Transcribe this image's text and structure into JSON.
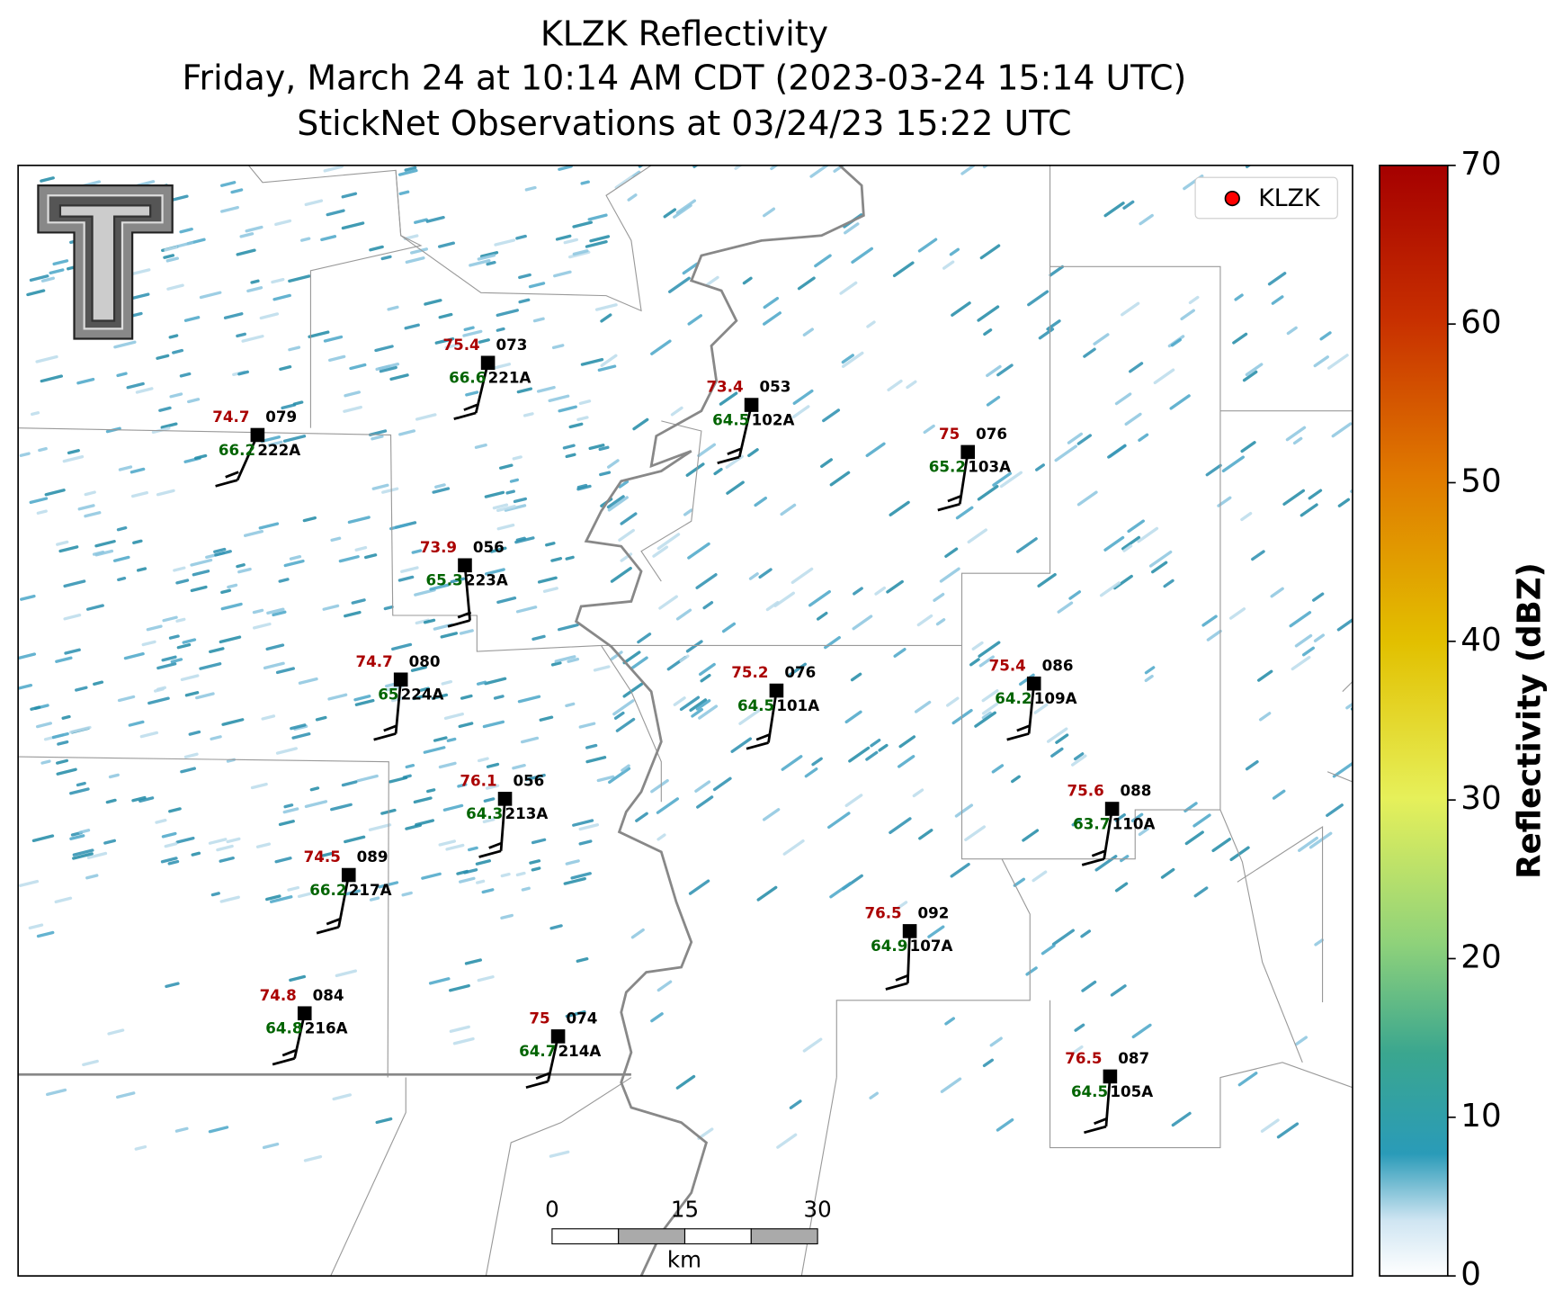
{
  "header": {
    "title": "KLZK Reflectivity",
    "subtitle": "Friday, March 24 at 10:14 AM CDT (2023-03-24 15:14 UTC)",
    "observations": "StickNet Observations at 03/24/23 15:22 UTC"
  },
  "legend": {
    "label": "KLZK",
    "color": "#ff0000"
  },
  "colorbar": {
    "label": "Reflectivity (dBZ)",
    "lim": [
      0,
      70
    ],
    "ticks": [
      0,
      10,
      20,
      30,
      40,
      50,
      60,
      70
    ]
  },
  "scale_bar": {
    "ticks": [
      0,
      15,
      30
    ],
    "unit": "km"
  },
  "stations": [
    {
      "id": "221A",
      "temperature": 75.4,
      "dewpoint": 66.6,
      "pressure": "073"
    },
    {
      "id": "222A",
      "temperature": 74.7,
      "dewpoint": 66.2,
      "pressure": "079"
    },
    {
      "id": "102A",
      "temperature": 73.4,
      "dewpoint": 64.5,
      "pressure": "053"
    },
    {
      "id": "103A",
      "temperature": 75.0,
      "dewpoint": 65.2,
      "pressure": "076"
    },
    {
      "id": "223A",
      "temperature": 73.9,
      "dewpoint": 65.3,
      "pressure": "056"
    },
    {
      "id": "224A",
      "temperature": 74.7,
      "dewpoint": 65.0,
      "pressure": "080"
    },
    {
      "id": "101A",
      "temperature": 75.2,
      "dewpoint": 64.5,
      "pressure": "076"
    },
    {
      "id": "109A",
      "temperature": 75.4,
      "dewpoint": 64.2,
      "pressure": "086"
    },
    {
      "id": "213A",
      "temperature": 76.1,
      "dewpoint": 64.3,
      "pressure": "056"
    },
    {
      "id": "110A",
      "temperature": 75.6,
      "dewpoint": 63.7,
      "pressure": "088"
    },
    {
      "id": "217A",
      "temperature": 74.5,
      "dewpoint": 66.2,
      "pressure": "089"
    },
    {
      "id": "107A",
      "temperature": 76.5,
      "dewpoint": 64.9,
      "pressure": "092"
    },
    {
      "id": "216A",
      "temperature": 74.8,
      "dewpoint": 64.8,
      "pressure": "084"
    },
    {
      "id": "214A",
      "temperature": 75.0,
      "dewpoint": 64.7,
      "pressure": "074"
    },
    {
      "id": "105A",
      "temperature": 76.5,
      "dewpoint": 64.5,
      "pressure": "087"
    }
  ]
}
